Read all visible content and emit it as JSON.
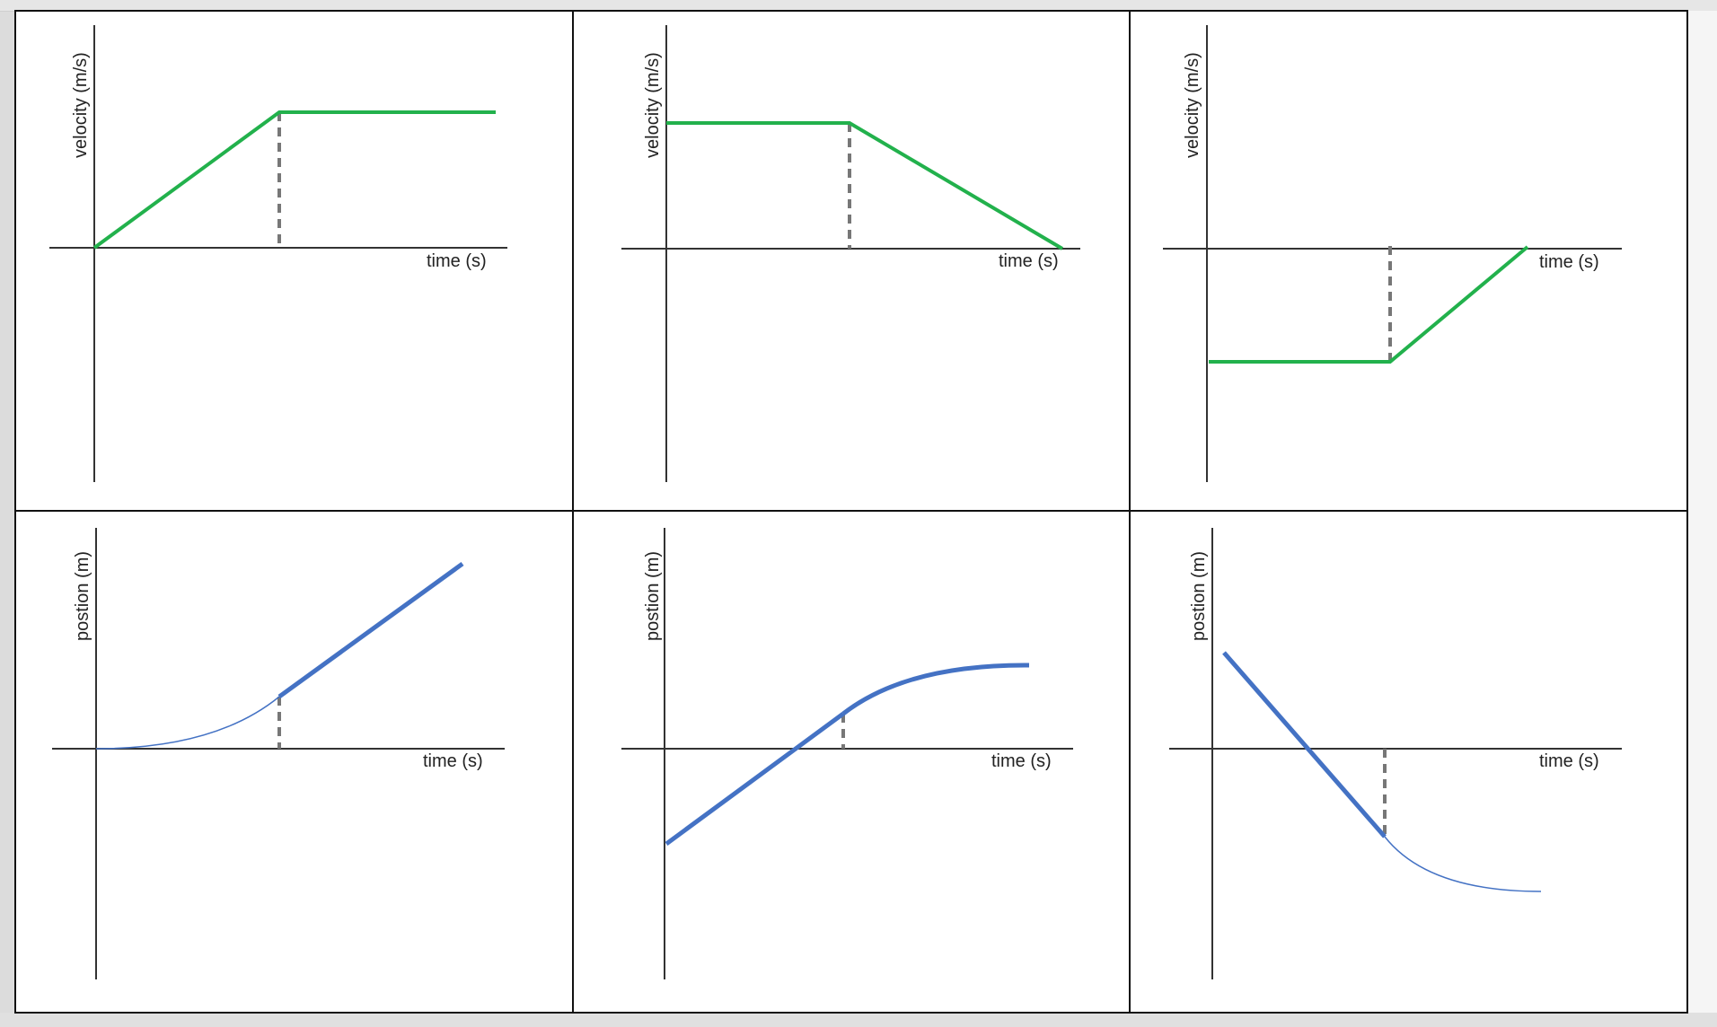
{
  "colors": {
    "velocity_curve": "#22b14c",
    "position_curve": "#4472c4",
    "dashed_marker": "#777777",
    "axis": "#333333",
    "border": "#111111"
  },
  "panels": [
    {
      "id": "v1",
      "ylabel": "velocity (m/s)",
      "xlabel": "time (s)"
    },
    {
      "id": "v2",
      "ylabel": "velocity (m/s)",
      "xlabel": "time (s)"
    },
    {
      "id": "v3",
      "ylabel": "velocity (m/s)",
      "xlabel": "time (s)"
    },
    {
      "id": "p1",
      "ylabel": "postion (m)",
      "xlabel": "time (s)"
    },
    {
      "id": "p2",
      "ylabel": "postion (m)",
      "xlabel": "time (s)"
    },
    {
      "id": "p3",
      "ylabel": "postion (m)",
      "xlabel": "time (s)"
    }
  ]
}
